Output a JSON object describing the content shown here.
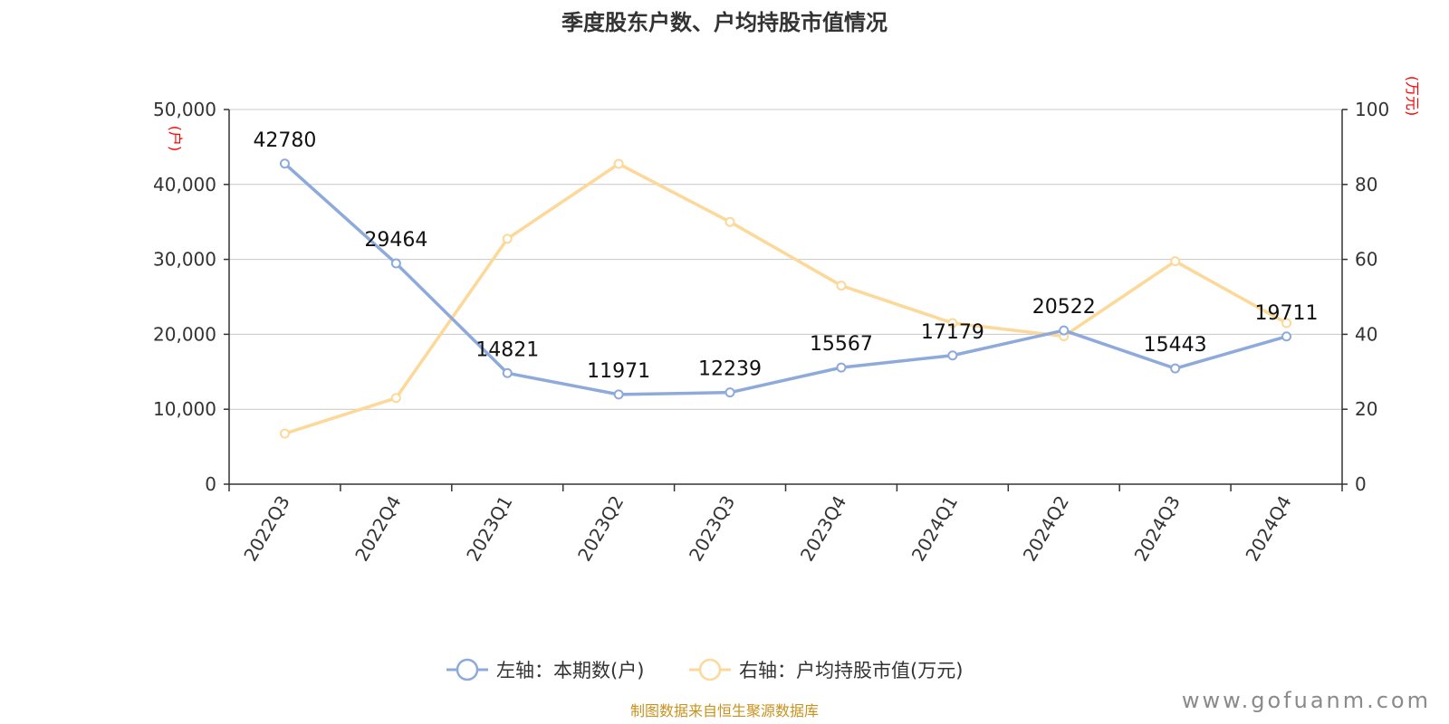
{
  "chart_data": {
    "type": "line",
    "title": "季度股东户数、户均持股市值情况",
    "categories": [
      "2022Q3",
      "2022Q4",
      "2023Q1",
      "2023Q2",
      "2023Q3",
      "2023Q4",
      "2024Q1",
      "2024Q2",
      "2024Q3",
      "2024Q4"
    ],
    "left_axis": {
      "unit": "(户)",
      "ylim": [
        0,
        50000
      ],
      "ticks": [
        "0",
        "10,000",
        "20,000",
        "30,000",
        "40,000",
        "50,000"
      ],
      "tick_values": [
        0,
        10000,
        20000,
        30000,
        40000,
        50000
      ]
    },
    "right_axis": {
      "unit": "(万元)",
      "ylim": [
        0,
        100
      ],
      "ticks": [
        "0",
        "20",
        "40",
        "60",
        "80",
        "100"
      ],
      "tick_values": [
        0,
        20,
        40,
        60,
        80,
        100
      ]
    },
    "series": [
      {
        "name": "左轴：本期数(户)",
        "axis": "left",
        "color": "#8eaadb",
        "values": [
          42780,
          29464,
          14821,
          11971,
          12239,
          15567,
          17179,
          20522,
          15443,
          19711
        ],
        "labels": [
          "42780",
          "29464",
          "14821",
          "11971",
          "12239",
          "15567",
          "17179",
          "20522",
          "15443",
          "19711"
        ]
      },
      {
        "name": "右轴：户均持股市值(万元)",
        "axis": "right",
        "color": "#fcd899",
        "values": [
          13.5,
          23,
          65.5,
          85.5,
          70,
          53,
          43,
          39.5,
          59.5,
          43
        ]
      }
    ],
    "grid": true,
    "legend_position": "bottom"
  },
  "footer": {
    "source": "制图数据来自恒生聚源数据库",
    "watermark": "www.gofuanm.com"
  }
}
